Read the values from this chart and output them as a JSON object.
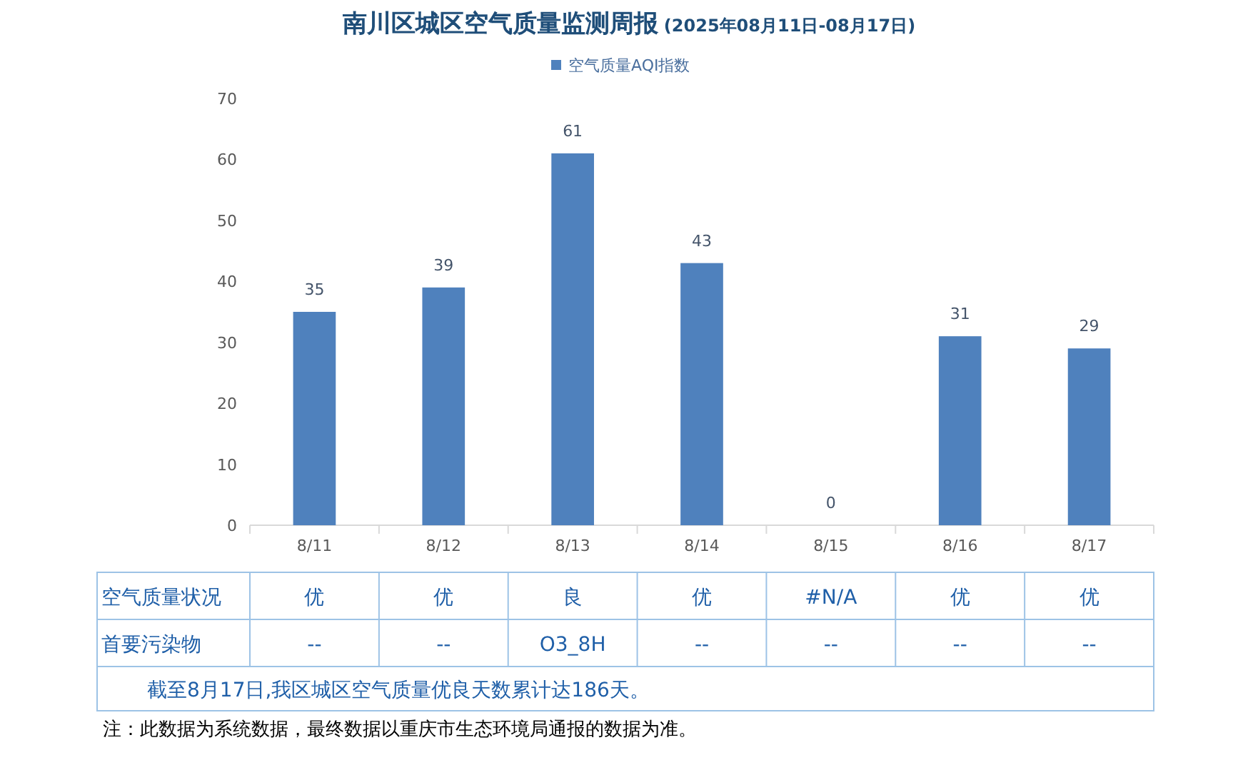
{
  "chart_data": {
    "type": "bar",
    "title": "南川区城区空气质量监测周报",
    "subtitle": "(2025年08月11日-08月17日)",
    "categories": [
      "8/11",
      "8/12",
      "8/13",
      "8/14",
      "8/15",
      "8/16",
      "8/17"
    ],
    "series": [
      {
        "name": "空气质量AQI指数",
        "color": "#4f81bd",
        "values": [
          35,
          39,
          61,
          43,
          0,
          31,
          29
        ]
      }
    ],
    "ylim": [
      0,
      70
    ],
    "yticks": [
      0,
      10,
      20,
      30,
      40,
      50,
      60,
      70
    ],
    "grid": false,
    "legend": "top",
    "data_labels": true,
    "annotations": [
      "空气质量状况",
      "优",
      "优",
      "良",
      "优",
      "#N/A",
      "优",
      "优",
      "首要污染物",
      "--",
      "--",
      "O3_8H",
      "--",
      "--",
      "--",
      "--",
      "截至8月17日,我区城区空气质量优良天数累计达186天。",
      "注：此数据为系统数据，最终数据以重庆市生态环境局通报的数据为准。"
    ]
  }
}
